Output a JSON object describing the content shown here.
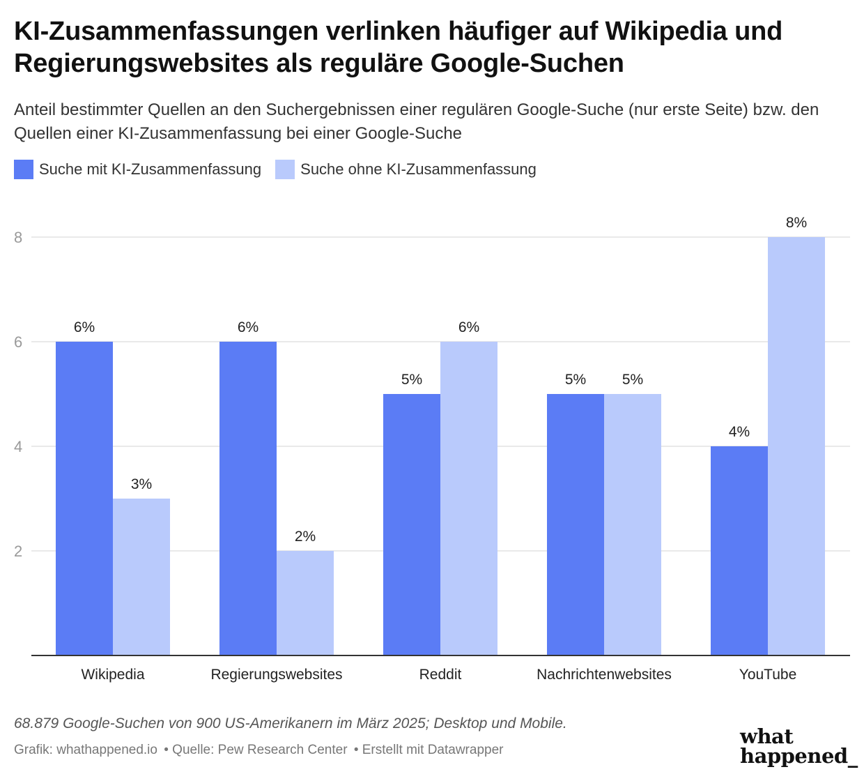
{
  "title": "KI-Zusammenfassungen verlinken häufiger auf Wikipedia und Regierungswebsites als reguläre Google-Suchen",
  "subtitle": "Anteil bestimmter Quellen an den Suchergebnissen einer regulären Google-Suche (nur erste Seite) bzw. den Quellen einer KI-Zusammenfassung bei einer Google-Suche",
  "legend": [
    {
      "label": "Suche mit KI-Zusammenfassung",
      "color": "#5b7cf5"
    },
    {
      "label": "Suche ohne KI-Zusammenfassung",
      "color": "#b9cafc"
    }
  ],
  "chart_data": {
    "type": "bar",
    "categories": [
      "Wikipedia",
      "Regierungswebsites",
      "Reddit",
      "Nachrichtenwebsites",
      "YouTube"
    ],
    "series": [
      {
        "name": "Suche mit KI-Zusammenfassung",
        "values": [
          6,
          6,
          5,
          5,
          4
        ],
        "color": "#5b7cf5"
      },
      {
        "name": "Suche ohne KI-Zusammenfassung",
        "values": [
          3,
          2,
          6,
          5,
          8
        ],
        "color": "#b9cafc"
      }
    ],
    "value_suffix": "%",
    "yticks": [
      2,
      4,
      6,
      8
    ],
    "ylim": [
      0,
      8
    ],
    "grid": true,
    "legend_position": "top-left"
  },
  "notes": "68.879 Google-Suchen von 900 US-Amerikanern im März 2025; Desktop und Mobile.",
  "byline": {
    "graphic": "Grafik: whathappened.io",
    "source": "• Quelle: Pew Research Center",
    "tool": "• Erstellt mit Datawrapper"
  },
  "logo_lines": [
    "what",
    "happened_"
  ]
}
